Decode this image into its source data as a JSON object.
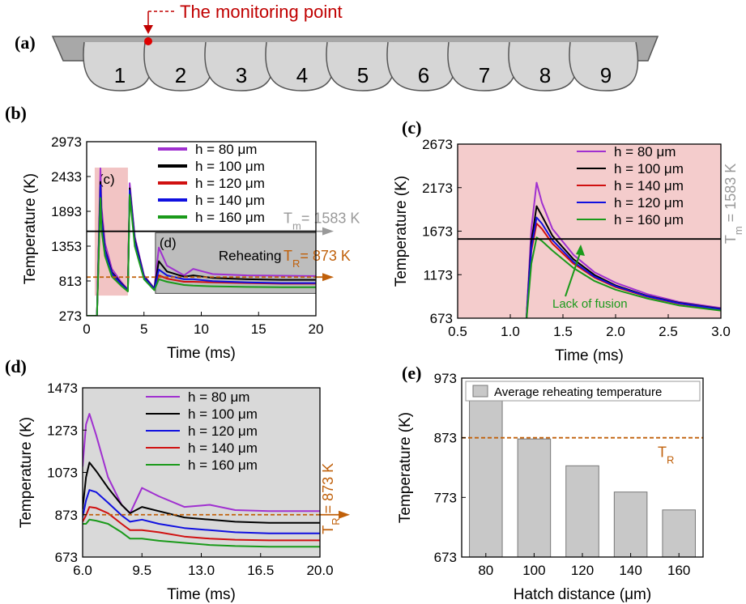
{
  "figure": {
    "panel_labels": [
      "(a)",
      "(b)",
      "(c)",
      "(d)",
      "(e)"
    ]
  },
  "diagram": {
    "callout": "The monitoring point",
    "tracks": [
      "1",
      "2",
      "3",
      "4",
      "5",
      "6",
      "7",
      "8",
      "9"
    ]
  },
  "chart_data": [
    {
      "type": "line",
      "x_label": "Time (ms)",
      "y_label": "Temperature (K)",
      "xlim": [
        0,
        20
      ],
      "xticks": [
        0,
        5,
        10,
        15,
        20
      ],
      "ylim": [
        273,
        2973
      ],
      "yticks": [
        273,
        813,
        1353,
        1893,
        2433,
        2973
      ],
      "x": [
        0,
        0.9,
        1.2,
        1.3,
        1.6,
        2.2,
        3.0,
        3.6,
        3.75,
        4.2,
        5.0,
        5.9,
        6.3,
        7.0,
        8.5,
        9.3,
        11,
        14,
        17,
        20
      ],
      "series": [
        {
          "name": "h = 80 μm",
          "color": "#a030d0",
          "values": [
            273,
            273,
            2560,
            1950,
            1400,
            1000,
            800,
            680,
            2330,
            1500,
            900,
            700,
            1330,
            1050,
            900,
            1000,
            920,
            900,
            895,
            890
          ]
        },
        {
          "name": "h = 100 μm",
          "color": "#000000",
          "values": [
            273,
            273,
            2350,
            1800,
            1300,
            950,
            780,
            670,
            2250,
            1450,
            880,
            690,
            1120,
            960,
            880,
            900,
            860,
            840,
            830,
            830
          ]
        },
        {
          "name": "h = 120 μm",
          "color": "#d01010",
          "values": [
            273,
            273,
            2250,
            1700,
            1250,
            920,
            760,
            660,
            2200,
            1400,
            860,
            680,
            900,
            850,
            800,
            800,
            790,
            780,
            770,
            770
          ]
        },
        {
          "name": "h = 140 μm",
          "color": "#1010e0",
          "values": [
            273,
            273,
            2300,
            1750,
            1280,
            930,
            770,
            665,
            2220,
            1420,
            870,
            685,
            990,
            900,
            840,
            840,
            810,
            790,
            780,
            780
          ]
        },
        {
          "name": "h = 160 μm",
          "color": "#1a9a1a",
          "values": [
            273,
            273,
            2100,
            1600,
            1200,
            880,
            740,
            650,
            2150,
            1350,
            840,
            670,
            840,
            800,
            750,
            740,
            730,
            720,
            715,
            715
          ]
        }
      ],
      "reference_lines": [
        {
          "value": 1583,
          "color": "#000000",
          "label": [
            "T",
            "m",
            "= 1583 K"
          ],
          "label_color": "#999999"
        },
        {
          "value": 873,
          "color": "#c0600a",
          "dashed": true,
          "label": [
            "T",
            "R",
            "= 873 K"
          ],
          "label_color": "#c0600a"
        }
      ],
      "regions": [
        {
          "label": "(c)",
          "xlim": [
            0.7,
            3.6
          ],
          "ylim": [
            586,
            2571
          ],
          "color": "#f2c4c4"
        },
        {
          "label": "(d)",
          "xlim": [
            6,
            20
          ],
          "ylim": [
            620,
            1560
          ],
          "color": "#bdbdbd",
          "note": "Reheating"
        }
      ]
    },
    {
      "type": "line",
      "x_label": "Time (ms)",
      "y_label": "Temperature (K)",
      "background": "#f4cccc",
      "xlim": [
        0.5,
        3.0
      ],
      "xticks": [
        0.5,
        {
          "value": 1,
          "label": "1.0"
        },
        1.5,
        {
          "value": 2,
          "label": "2.0"
        },
        2.5,
        {
          "value": 3,
          "label": "3.0"
        }
      ],
      "ylim": [
        673,
        2673
      ],
      "yticks": [
        673,
        1173,
        1673,
        2173,
        2673
      ],
      "x": [
        1.15,
        1.2,
        1.25,
        1.3,
        1.4,
        1.6,
        1.8,
        2.0,
        2.3,
        2.6,
        3.0
      ],
      "series": [
        {
          "name": "h = 80 μm",
          "color": "#a030d0",
          "values": [
            600,
            1700,
            2230,
            2000,
            1700,
            1400,
            1200,
            1080,
            950,
            860,
            790
          ]
        },
        {
          "name": "h = 100 μm",
          "color": "#000000",
          "values": [
            600,
            1550,
            1960,
            1850,
            1620,
            1350,
            1170,
            1050,
            930,
            850,
            780
          ]
        },
        {
          "name": "h = 140 μm",
          "color": "#d01010",
          "values": [
            600,
            1450,
            1760,
            1700,
            1530,
            1300,
            1140,
            1030,
            920,
            840,
            770
          ]
        },
        {
          "name": "h = 120 μm",
          "color": "#1010e0",
          "values": [
            600,
            1480,
            1830,
            1760,
            1570,
            1320,
            1150,
            1040,
            925,
            845,
            775
          ]
        },
        {
          "name": "h = 160 μm",
          "color": "#1a9a1a",
          "values": [
            600,
            1300,
            1600,
            1560,
            1450,
            1250,
            1100,
            1000,
            900,
            820,
            760
          ]
        }
      ],
      "reference_lines": [
        {
          "value": 1583,
          "color": "#000000",
          "label": [
            "T",
            "m",
            " = 1583 K"
          ],
          "label_color": "#999999"
        }
      ],
      "annotations": [
        {
          "text": "Lack of fusion",
          "color": "#1a9a1a"
        }
      ]
    },
    {
      "type": "line",
      "x_label": "Time (ms)",
      "y_label": "Temperature (K)",
      "background": "#d9d9d9",
      "xlim": [
        6,
        20
      ],
      "xticks": [
        {
          "value": 6,
          "label": "6.0"
        },
        9.5,
        {
          "value": 13,
          "label": "13.0"
        },
        16.5,
        {
          "value": 20,
          "label": "20.0"
        }
      ],
      "ylim": [
        673,
        1473
      ],
      "yticks": [
        673,
        873,
        1073,
        1273,
        1473
      ],
      "x": [
        6,
        6.2,
        6.4,
        6.8,
        7.5,
        8.3,
        8.8,
        9.5,
        10.5,
        12,
        13.5,
        15,
        17,
        20
      ],
      "series": [
        {
          "name": "h = 80 μm",
          "color": "#a030d0",
          "values": [
            1100,
            1300,
            1350,
            1250,
            1050,
            920,
            880,
            1000,
            960,
            910,
            920,
            895,
            890,
            890
          ]
        },
        {
          "name": "h = 100 μm",
          "color": "#000000",
          "values": [
            900,
            1050,
            1120,
            1080,
            1000,
            920,
            880,
            910,
            890,
            860,
            850,
            840,
            835,
            835
          ]
        },
        {
          "name": "h = 120 μm",
          "color": "#1010e0",
          "values": [
            860,
            940,
            990,
            980,
            930,
            870,
            840,
            850,
            830,
            810,
            800,
            790,
            785,
            785
          ]
        },
        {
          "name": "h = 140 μm",
          "color": "#d01010",
          "values": [
            840,
            870,
            910,
            905,
            880,
            830,
            800,
            800,
            790,
            770,
            760,
            755,
            752,
            752
          ]
        },
        {
          "name": "h = 160 μm",
          "color": "#1a9a1a",
          "values": [
            830,
            830,
            850,
            845,
            830,
            790,
            760,
            760,
            750,
            740,
            730,
            725,
            722,
            722
          ]
        }
      ],
      "reference_lines": [
        {
          "value": 873,
          "color": "#c0600a",
          "dashed": true,
          "label": [
            "T",
            "R",
            " = 873 K"
          ],
          "label_color": "#c0600a"
        }
      ]
    },
    {
      "type": "bar",
      "x_label": "Hatch distance (μm)",
      "y_label": "Temperature (K)",
      "categories": [
        "80",
        "100",
        "120",
        "140",
        "160"
      ],
      "values": [
        940,
        871,
        826,
        782,
        752
      ],
      "color": "#c8c8c8",
      "series_name": "Average reheating temperature",
      "ylim": [
        673,
        973
      ],
      "yticks": [
        673,
        773,
        873,
        973
      ],
      "reference_lines": [
        {
          "value": 873,
          "color": "#c0600a",
          "dashed": true,
          "label": [
            "T",
            "R"
          ],
          "label_color": "#c0600a"
        }
      ]
    }
  ]
}
